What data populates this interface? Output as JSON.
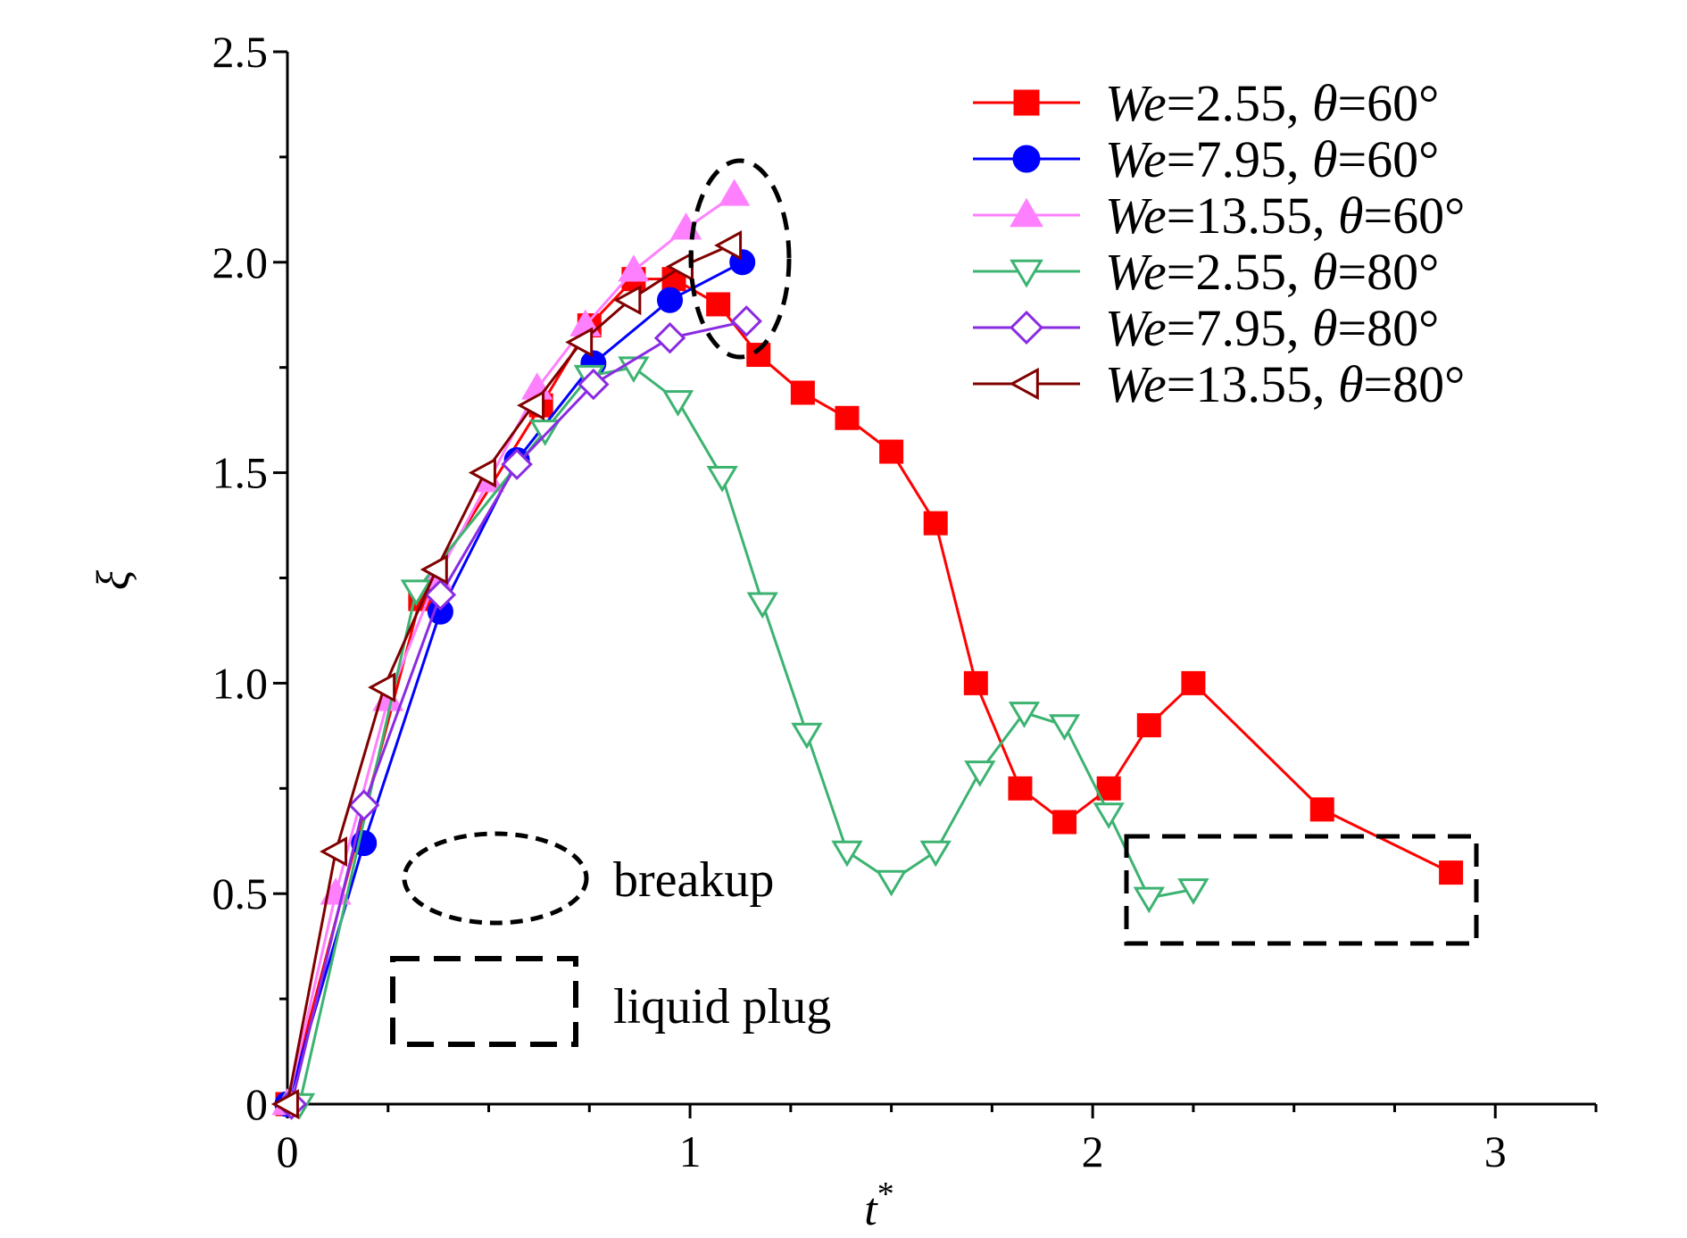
{
  "chart_data": {
    "type": "line",
    "xlabel": "t",
    "xlabel_sup": "*",
    "ylabel": "ξ",
    "xlim": [
      0,
      3.25
    ],
    "ylim": [
      0,
      2.5
    ],
    "xticks": [
      {
        "value": 0,
        "label": "0"
      },
      {
        "value": 1,
        "label": "1"
      },
      {
        "value": 2,
        "label": "2"
      },
      {
        "value": 3,
        "label": "3"
      }
    ],
    "yticks": [
      {
        "value": 0,
        "label": "0"
      },
      {
        "value": 0.5,
        "label": "0.5"
      },
      {
        "value": 1.0,
        "label": "1.0"
      },
      {
        "value": 1.5,
        "label": "1.5"
      },
      {
        "value": 2.0,
        "label": "2.0"
      },
      {
        "value": 2.5,
        "label": "2.5"
      }
    ],
    "grid": false,
    "legend_position": "top-right",
    "series": [
      {
        "name": "We=2.55, θ=60°",
        "we": "We",
        "rest": "=2.55, ",
        "theta": "θ",
        "tail": "=60°",
        "color": "#ff0000",
        "marker": "square",
        "filled": true,
        "x": [
          0,
          0.33,
          0.63,
          0.75,
          0.86,
          0.96,
          1.07,
          1.17,
          1.28,
          1.39,
          1.5,
          1.61,
          1.71,
          1.82,
          1.93,
          2.04,
          2.14,
          2.25,
          2.57,
          2.89
        ],
        "y": [
          0,
          1.2,
          1.66,
          1.85,
          1.96,
          1.96,
          1.9,
          1.78,
          1.69,
          1.63,
          1.55,
          1.38,
          1.0,
          0.75,
          0.67,
          0.75,
          0.9,
          1.0,
          0.7,
          0.55
        ]
      },
      {
        "name": "We=7.95, θ=60°",
        "we": "We",
        "rest": "=7.95, ",
        "theta": "θ",
        "tail": "=60°",
        "color": "#0000ff",
        "marker": "circle",
        "filled": true,
        "x": [
          0,
          0.19,
          0.38,
          0.57,
          0.76,
          0.95,
          1.13
        ],
        "y": [
          0,
          0.62,
          1.17,
          1.53,
          1.76,
          1.91,
          2.0
        ]
      },
      {
        "name": "We=13.55, θ=60°",
        "we": "We",
        "rest": "=13.55, ",
        "theta": "θ",
        "tail": "=60°",
        "color": "#ff80ff",
        "marker": "triangle-up",
        "filled": true,
        "x": [
          0,
          0.12,
          0.25,
          0.37,
          0.5,
          0.62,
          0.74,
          0.86,
          0.99,
          1.11
        ],
        "y": [
          0,
          0.5,
          0.96,
          1.25,
          1.48,
          1.7,
          1.85,
          1.98,
          2.08,
          2.16
        ]
      },
      {
        "name": "We=2.55, θ=80°",
        "we": "We",
        "rest": "=2.55, ",
        "theta": "θ",
        "tail": "=80°",
        "color": "#3cb371",
        "marker": "triangle-down",
        "filled": false,
        "x": [
          0.03,
          0.32,
          0.64,
          0.75,
          0.86,
          0.97,
          1.08,
          1.18,
          1.29,
          1.39,
          1.5,
          1.61,
          1.72,
          1.83,
          1.93,
          2.04,
          2.14,
          2.25
        ],
        "y": [
          0,
          1.22,
          1.6,
          1.73,
          1.75,
          1.67,
          1.49,
          1.19,
          0.88,
          0.6,
          0.53,
          0.6,
          0.79,
          0.93,
          0.9,
          0.69,
          0.49,
          0.51
        ]
      },
      {
        "name": "We=7.95, θ=80°",
        "we": "We",
        "rest": "=7.95, ",
        "theta": "θ",
        "tail": "=80°",
        "color": "#8a2be2",
        "marker": "diamond",
        "filled": false,
        "x": [
          0.01,
          0.19,
          0.38,
          0.57,
          0.76,
          0.95,
          1.14
        ],
        "y": [
          0,
          0.71,
          1.21,
          1.52,
          1.71,
          1.82,
          1.86
        ]
      },
      {
        "name": "We=13.55, θ=80°",
        "we": "We",
        "rest": "=13.55, ",
        "theta": "θ",
        "tail": "=80°",
        "color": "#800000",
        "marker": "triangle-left",
        "filled": false,
        "x": [
          0,
          0.12,
          0.24,
          0.37,
          0.49,
          0.61,
          0.73,
          0.85,
          0.98,
          1.1
        ],
        "y": [
          0,
          0.6,
          0.99,
          1.27,
          1.5,
          1.66,
          1.81,
          1.91,
          1.99,
          2.04
        ]
      }
    ],
    "annotations": {
      "breakup_label": "breakup",
      "liquid_plug_label": "liquid plug"
    }
  }
}
